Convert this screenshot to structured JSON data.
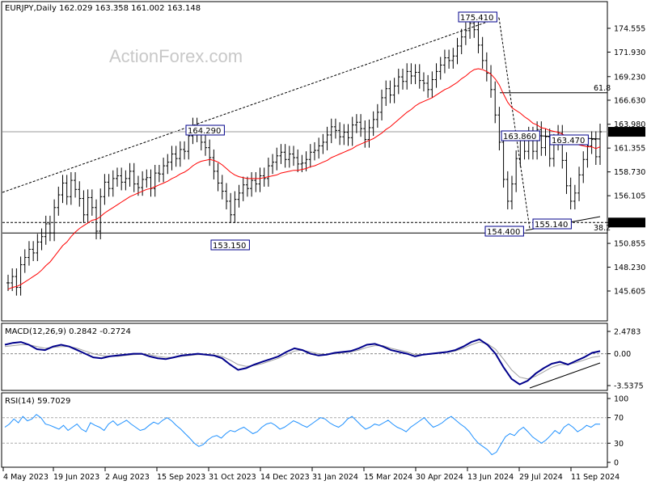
{
  "header": {
    "symbol_line": "EURJPY,Daily  162.029 163.358 161.002 163.148",
    "watermark": "ActionForex.com"
  },
  "colors": {
    "candles": "#000000",
    "ma": "#ff0000",
    "macd": "#00008b",
    "signal": "#a0a0a0",
    "rsi": "#1e90ff",
    "price_tag_bg": "#000000",
    "label_border": "#00008b"
  },
  "chart_data": [
    {
      "type": "line",
      "panel": "price",
      "title": "EURJPY,Daily",
      "ohlc_last": {
        "open": 162.029,
        "high": 163.358,
        "low": 161.002,
        "close": 163.148
      },
      "x_tick_labels": [
        "4 May 2023",
        "19 Jun 2023",
        "2 Aug 2023",
        "15 Sep 2023",
        "31 Oct 2023",
        "14 Dec 2023",
        "31 Jan 2024",
        "15 Mar 2024",
        "30 Apr 2024",
        "13 Jun 2024",
        "29 Jul 2024",
        "11 Sep 2024"
      ],
      "y_tick_labels": [
        "174.555",
        "171.930",
        "169.230",
        "166.630",
        "163.980",
        "161.355",
        "158.730",
        "156.105",
        "153.150",
        "150.855",
        "148.230",
        "145.605"
      ],
      "ylim": [
        145.605,
        176.2
      ],
      "price_tags": [
        {
          "value": 163.148,
          "label": "163.148"
        },
        {
          "value": 153.15,
          "label": "153.150"
        }
      ],
      "annotations": [
        {
          "text": "175.410",
          "value": 175.41
        },
        {
          "text": "164.290",
          "value": 164.29
        },
        {
          "text": "153.150",
          "value": 153.15
        },
        {
          "text": "163.860",
          "value": 163.86
        },
        {
          "text": "163.470",
          "value": 163.47
        },
        {
          "text": "154.400",
          "value": 154.4
        },
        {
          "text": "155.140",
          "value": 155.14
        }
      ],
      "fib_levels": [
        {
          "label": "61.8",
          "value": 167.45
        },
        {
          "label": "38.2",
          "value": 152.0
        }
      ],
      "series": [
        {
          "name": "",
          "kind": "close",
          "values": [
            146.5,
            147.2,
            146.0,
            148.5,
            149.3,
            150.2,
            149.8,
            151.0,
            151.6,
            153.0,
            152.0,
            154.8,
            156.2,
            157.5,
            156.0,
            157.8,
            156.8,
            155.8,
            154.0,
            155.9,
            154.8,
            152.2,
            156.0,
            157.6,
            156.9,
            158.0,
            158.3,
            157.6,
            158.0,
            158.8,
            157.4,
            157.0,
            157.9,
            158.1,
            156.9,
            158.6,
            158.5,
            159.4,
            159.8,
            160.7,
            160.2,
            161.2,
            161.0,
            162.7,
            163.8,
            162.9,
            162.0,
            161.4,
            160.3,
            158.8,
            157.5,
            156.6,
            155.5,
            154.0,
            155.7,
            156.4,
            157.3,
            156.9,
            157.8,
            157.4,
            158.3,
            158.0,
            159.4,
            159.8,
            160.5,
            160.9,
            160.1,
            160.7,
            160.3,
            159.6,
            159.7,
            160.1,
            160.9,
            161.1,
            161.6,
            162.0,
            162.8,
            163.7,
            163.3,
            162.6,
            163.1,
            162.5,
            163.9,
            164.2,
            163.5,
            162.3,
            163.6,
            164.5,
            165.3,
            166.9,
            167.9,
            167.2,
            168.2,
            169.2,
            168.7,
            169.8,
            169.3,
            169.7,
            168.8,
            168.5,
            167.8,
            168.9,
            169.8,
            170.5,
            171.3,
            171.0,
            171.5,
            172.6,
            173.6,
            174.3,
            175.1,
            174.4,
            172.7,
            171.0,
            169.6,
            167.8,
            165.0,
            162.0,
            157.9,
            155.5,
            157.4,
            160.2,
            162.3,
            161.0,
            162.8,
            161.0,
            163.4,
            161.4,
            162.6,
            160.2,
            162.0,
            163.0,
            160.0,
            157.2,
            155.5,
            156.4,
            158.4,
            160.1,
            161.6,
            162.3,
            160.4,
            163.148
          ]
        },
        {
          "name": "",
          "kind": "moving_average",
          "values": [
            145.8,
            146.0,
            146.1,
            146.3,
            146.6,
            146.9,
            147.2,
            147.5,
            147.9,
            148.4,
            148.8,
            149.4,
            150.0,
            150.6,
            151.0,
            151.6,
            152.1,
            152.5,
            152.8,
            153.1,
            153.4,
            153.5,
            153.8,
            154.2,
            154.5,
            154.8,
            155.1,
            155.4,
            155.7,
            156.0,
            156.2,
            156.4,
            156.6,
            156.8,
            156.9,
            157.1,
            157.3,
            157.5,
            157.7,
            158.0,
            158.2,
            158.5,
            158.7,
            159.0,
            159.4,
            159.7,
            159.9,
            160.0,
            160.1,
            160.0,
            159.8,
            159.5,
            159.1,
            158.7,
            158.4,
            158.2,
            158.1,
            158.0,
            158.0,
            158.0,
            158.0,
            158.1,
            158.2,
            158.3,
            158.4,
            158.6,
            158.7,
            158.8,
            158.9,
            158.9,
            159.0,
            159.1,
            159.3,
            159.4,
            159.6,
            159.8,
            160.0,
            160.3,
            160.5,
            160.7,
            160.9,
            161.1,
            161.3,
            161.6,
            161.8,
            162.0,
            162.2,
            162.4,
            162.7,
            163.0,
            163.4,
            163.7,
            164.1,
            164.5,
            164.9,
            165.3,
            165.6,
            166.0,
            166.3,
            166.5,
            166.7,
            166.9,
            167.2,
            167.5,
            167.8,
            168.0,
            168.3,
            168.6,
            169.0,
            169.3,
            169.7,
            170.0,
            170.1,
            170.0,
            169.8,
            169.5,
            169.0,
            168.3,
            167.3,
            166.4,
            165.8,
            165.5,
            165.2,
            164.8,
            164.5,
            164.1,
            163.9,
            163.6,
            163.5,
            163.3,
            163.2,
            163.1,
            162.9,
            162.6,
            162.2,
            161.9,
            161.7,
            161.6,
            161.5,
            161.5,
            161.3,
            161.5
          ]
        }
      ]
    },
    {
      "type": "line",
      "panel": "macd",
      "title": "MACD(12,26,9) 0.2842 -0.2724",
      "y_tick_labels": [
        "2.4783",
        "0.00",
        "-3.5375"
      ],
      "ylim": [
        -3.5375,
        2.4783
      ],
      "series": [
        {
          "name": "MACD(12,26,9)",
          "values": [
            1.0,
            1.2,
            1.3,
            1.0,
            0.5,
            0.4,
            0.8,
            1.0,
            0.8,
            0.4,
            0.0,
            -0.4,
            -0.5,
            -0.3,
            -0.2,
            -0.1,
            0.0,
            0.0,
            -0.3,
            -0.5,
            -0.6,
            -0.4,
            -0.2,
            -0.1,
            0.0,
            -0.1,
            -0.2,
            -0.5,
            -1.2,
            -1.8,
            -1.6,
            -1.2,
            -0.9,
            -0.6,
            -0.3,
            0.2,
            0.6,
            0.4,
            0.0,
            -0.2,
            -0.1,
            0.1,
            0.2,
            0.3,
            0.6,
            1.0,
            1.1,
            0.8,
            0.4,
            0.2,
            0.0,
            -0.3,
            -0.1,
            0.0,
            0.1,
            0.2,
            0.4,
            0.8,
            1.3,
            1.6,
            1.0,
            0.0,
            -1.5,
            -2.8,
            -3.4,
            -3.0,
            -2.2,
            -1.6,
            -1.1,
            -0.9,
            -1.2,
            -0.8,
            -0.4,
            0.1,
            0.2842
          ]
        },
        {
          "name": "Signal",
          "values": [
            0.8,
            0.9,
            1.0,
            1.0,
            0.8,
            0.6,
            0.7,
            0.8,
            0.8,
            0.6,
            0.3,
            0.0,
            -0.2,
            -0.3,
            -0.3,
            -0.2,
            -0.1,
            -0.05,
            -0.1,
            -0.3,
            -0.4,
            -0.4,
            -0.3,
            -0.2,
            -0.1,
            -0.1,
            -0.15,
            -0.3,
            -0.7,
            -1.2,
            -1.4,
            -1.3,
            -1.1,
            -0.8,
            -0.5,
            -0.1,
            0.3,
            0.4,
            0.2,
            0.0,
            -0.1,
            0.0,
            0.1,
            0.2,
            0.4,
            0.7,
            0.9,
            0.9,
            0.6,
            0.4,
            0.2,
            -0.1,
            -0.1,
            -0.05,
            0.05,
            0.15,
            0.3,
            0.6,
            1.0,
            1.3,
            1.1,
            0.5,
            -0.6,
            -1.8,
            -2.6,
            -2.8,
            -2.5,
            -2.0,
            -1.5,
            -1.2,
            -1.2,
            -1.0,
            -0.7,
            -0.4,
            -0.2724
          ]
        }
      ]
    },
    {
      "type": "line",
      "panel": "rsi",
      "title": "RSI(14) 59.7029",
      "y_tick_labels": [
        "100",
        "70",
        "30",
        "0"
      ],
      "ylim": [
        0,
        100
      ],
      "series": [
        {
          "name": "RSI(14)",
          "values": [
            55,
            60,
            68,
            62,
            72,
            65,
            68,
            75,
            70,
            60,
            58,
            55,
            52,
            58,
            50,
            55,
            60,
            52,
            48,
            62,
            58,
            55,
            50,
            60,
            65,
            58,
            62,
            66,
            60,
            55,
            50,
            52,
            58,
            63,
            60,
            66,
            70,
            65,
            58,
            52,
            45,
            38,
            30,
            25,
            28,
            35,
            40,
            42,
            38,
            45,
            50,
            48,
            52,
            55,
            50,
            45,
            48,
            55,
            60,
            62,
            58,
            52,
            55,
            60,
            65,
            62,
            58,
            55,
            60,
            65,
            70,
            68,
            62,
            58,
            55,
            60,
            68,
            72,
            65,
            58,
            52,
            55,
            60,
            58,
            62,
            66,
            60,
            55,
            52,
            48,
            55,
            60,
            65,
            70,
            62,
            55,
            58,
            62,
            68,
            72,
            66,
            60,
            55,
            48,
            38,
            30,
            25,
            20,
            12,
            16,
            28,
            40,
            45,
            42,
            50,
            55,
            48,
            40,
            35,
            30,
            35,
            42,
            50,
            45,
            55,
            60,
            55,
            48,
            52,
            58,
            55,
            60,
            59.7
          ]
        }
      ]
    }
  ]
}
